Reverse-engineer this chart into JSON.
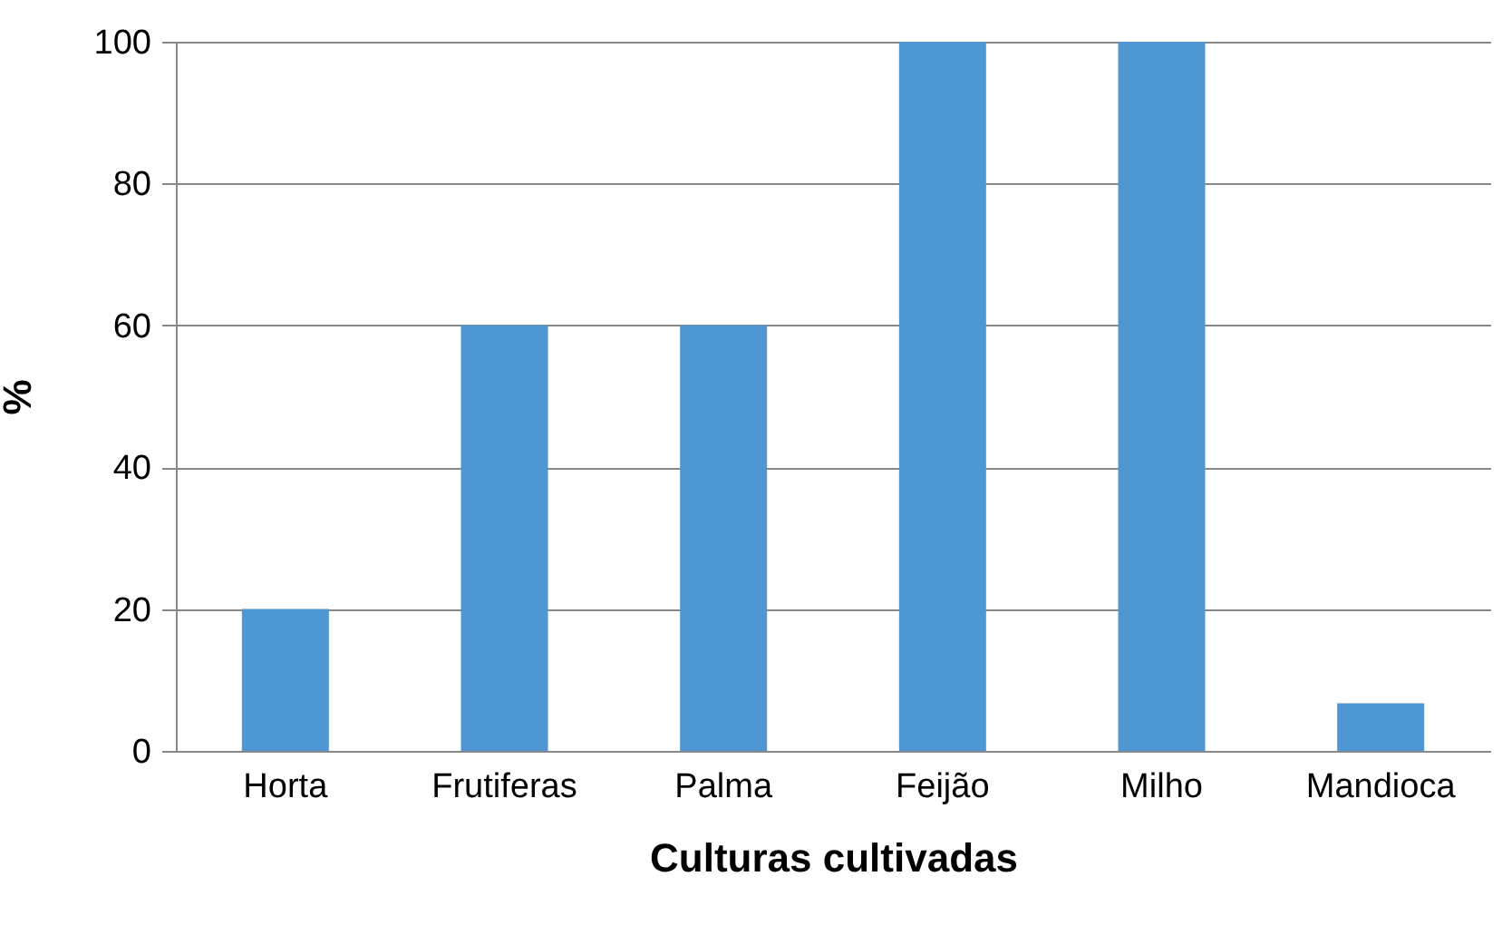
{
  "chart_data": {
    "type": "bar",
    "xlabel": "Culturas cultivadas",
    "ylabel": "%",
    "categories": [
      "Horta",
      "Frutiferas",
      "Palma",
      "Feijão",
      "Milho",
      "Mandioca"
    ],
    "values": [
      20,
      60,
      60,
      100,
      100,
      6.7
    ],
    "color": "#4f97d3",
    "ylim": [
      0,
      100
    ],
    "yticks": [
      0,
      20,
      40,
      60,
      80,
      100
    ],
    "grid": "y"
  }
}
